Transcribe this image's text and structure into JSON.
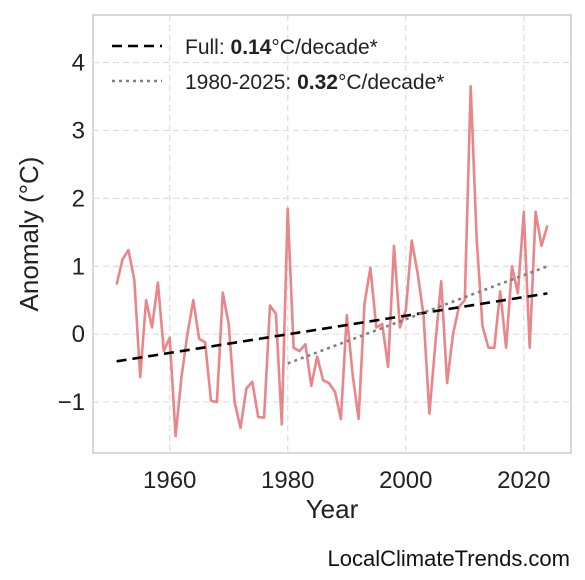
{
  "chart_data": {
    "type": "line",
    "xlabel": "Year",
    "ylabel": "Anomaly (°C)",
    "xlim": [
      1947,
      2028
    ],
    "ylim": [
      -1.75,
      4.7
    ],
    "xticks": [
      1960,
      1980,
      2000,
      2020
    ],
    "yticks": [
      -1,
      0,
      1,
      2,
      3,
      4
    ],
    "grid": true,
    "legend_position": "top-left",
    "series": [
      {
        "kind": "anomaly",
        "color": "#e8868a",
        "x": [
          1951,
          1952,
          1953,
          1954,
          1955,
          1956,
          1957,
          1958,
          1959,
          1960,
          1961,
          1962,
          1963,
          1964,
          1965,
          1966,
          1967,
          1968,
          1969,
          1970,
          1971,
          1972,
          1973,
          1974,
          1975,
          1976,
          1977,
          1978,
          1979,
          1980,
          1981,
          1982,
          1983,
          1984,
          1985,
          1986,
          1987,
          1988,
          1989,
          1990,
          1991,
          1992,
          1993,
          1994,
          1995,
          1996,
          1997,
          1998,
          1999,
          2000,
          2001,
          2002,
          2003,
          2004,
          2005,
          2006,
          2007,
          2008,
          2009,
          2010,
          2011,
          2012,
          2013,
          2014,
          2015,
          2016,
          2017,
          2018,
          2019,
          2020,
          2021,
          2022,
          2023,
          2024
        ],
        "values": [
          0.73,
          1.1,
          1.24,
          0.8,
          -0.63,
          0.5,
          0.1,
          0.76,
          -0.25,
          -0.05,
          -1.5,
          -0.63,
          0.0,
          0.5,
          -0.07,
          -0.12,
          -0.98,
          -1.0,
          0.61,
          0.15,
          -1.0,
          -1.38,
          -0.8,
          -0.7,
          -1.22,
          -1.23,
          0.42,
          0.3,
          -1.33,
          1.85,
          -0.2,
          -0.25,
          -0.15,
          -0.76,
          -0.33,
          -0.68,
          -0.72,
          -0.85,
          -1.25,
          0.28,
          -0.6,
          -1.25,
          0.45,
          0.98,
          0.1,
          0.15,
          -0.48,
          1.3,
          0.1,
          0.35,
          1.38,
          0.9,
          0.28,
          -1.17,
          -0.15,
          0.78,
          -0.72,
          0.0,
          0.4,
          0.5,
          3.65,
          1.42,
          0.12,
          -0.2,
          -0.2,
          0.63,
          -0.2,
          1.0,
          0.6,
          1.8,
          -0.2,
          1.8,
          1.3,
          1.6
        ]
      },
      {
        "kind": "trend-full",
        "color": "#000000",
        "x": [
          1951,
          2024
        ],
        "values": [
          -0.4,
          0.6
        ]
      },
      {
        "kind": "trend-recent",
        "color": "#808080",
        "x": [
          1980,
          2024
        ],
        "values": [
          -0.43,
          1.0
        ]
      }
    ],
    "legend": [
      {
        "prefix": "Full: ",
        "rate": "0.14",
        "suffix": "°C/decade*",
        "style": "dashed",
        "color": "#000000"
      },
      {
        "prefix": "1980-2025: ",
        "rate": "0.32",
        "suffix": "°C/decade*",
        "style": "dotted",
        "color": "#808080"
      }
    ]
  },
  "source": "LocalClimateTrends.com"
}
